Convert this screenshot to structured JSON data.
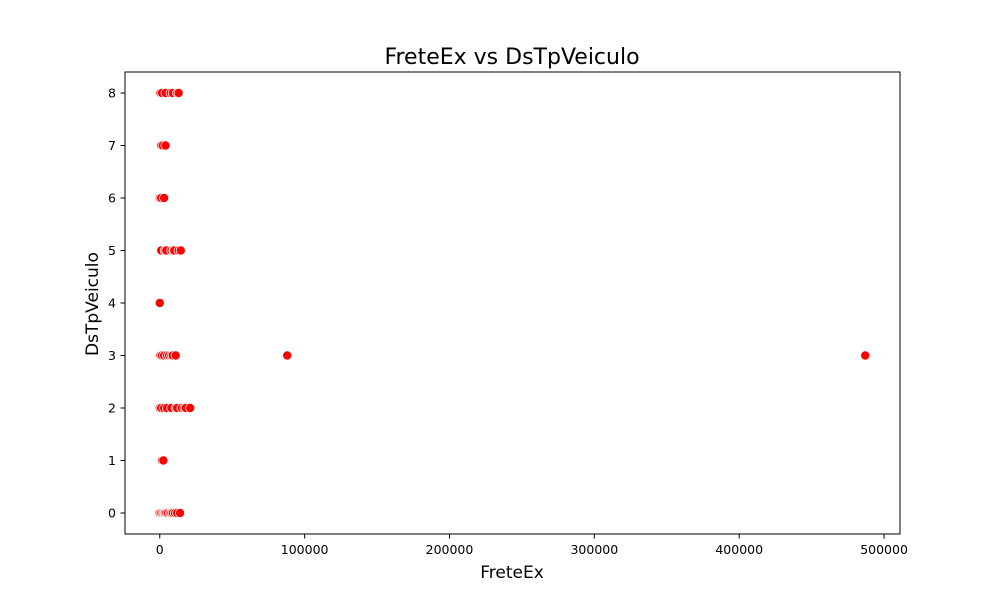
{
  "chart_data": {
    "type": "scatter",
    "title": "FreteEx vs DsTpVeiculo",
    "xlabel": "FreteEx",
    "ylabel": "DsTpVeiculo",
    "xlim": [
      -24000,
      511000
    ],
    "ylim": [
      -0.4,
      8.4
    ],
    "xticks": [
      0,
      100000,
      200000,
      300000,
      400000,
      500000
    ],
    "xtick_labels": [
      "0",
      "100000",
      "200000",
      "300000",
      "400000",
      "500000"
    ],
    "yticks": [
      0,
      1,
      2,
      3,
      4,
      5,
      6,
      7,
      8
    ],
    "ytick_labels": [
      "0",
      "1",
      "2",
      "3",
      "4",
      "5",
      "6",
      "7",
      "8"
    ],
    "grid": false,
    "legend": "none",
    "marker_color": "#ff0000",
    "marker_edge_color": "#ffffff",
    "points": [
      {
        "x": 0,
        "y": 8
      },
      {
        "x": 500,
        "y": 8
      },
      {
        "x": 1500,
        "y": 8
      },
      {
        "x": 4000,
        "y": 8
      },
      {
        "x": 7500,
        "y": 8
      },
      {
        "x": 9000,
        "y": 8
      },
      {
        "x": 12000,
        "y": 8
      },
      {
        "x": 13000,
        "y": 8
      },
      {
        "x": 500,
        "y": 7
      },
      {
        "x": 1000,
        "y": 7
      },
      {
        "x": 2000,
        "y": 7
      },
      {
        "x": 4000,
        "y": 7
      },
      {
        "x": 0,
        "y": 6
      },
      {
        "x": 1000,
        "y": 6
      },
      {
        "x": 3000,
        "y": 6
      },
      {
        "x": 1000,
        "y": 5
      },
      {
        "x": 3500,
        "y": 5
      },
      {
        "x": 4500,
        "y": 5
      },
      {
        "x": 8000,
        "y": 5
      },
      {
        "x": 9500,
        "y": 5
      },
      {
        "x": 10000,
        "y": 5
      },
      {
        "x": 13000,
        "y": 5
      },
      {
        "x": 14500,
        "y": 5
      },
      {
        "x": 0,
        "y": 4
      },
      {
        "x": 0,
        "y": 3
      },
      {
        "x": 500,
        "y": 3
      },
      {
        "x": 1500,
        "y": 3
      },
      {
        "x": 3000,
        "y": 3
      },
      {
        "x": 5000,
        "y": 3
      },
      {
        "x": 6500,
        "y": 3
      },
      {
        "x": 8000,
        "y": 3
      },
      {
        "x": 9000,
        "y": 3
      },
      {
        "x": 11000,
        "y": 3
      },
      {
        "x": 88000,
        "y": 3
      },
      {
        "x": 487000,
        "y": 3
      },
      {
        "x": 0,
        "y": 2
      },
      {
        "x": 1000,
        "y": 2
      },
      {
        "x": 3000,
        "y": 2
      },
      {
        "x": 5000,
        "y": 2
      },
      {
        "x": 8000,
        "y": 2
      },
      {
        "x": 11000,
        "y": 2
      },
      {
        "x": 12000,
        "y": 2
      },
      {
        "x": 15000,
        "y": 2
      },
      {
        "x": 17000,
        "y": 2
      },
      {
        "x": 18000,
        "y": 2
      },
      {
        "x": 21000,
        "y": 2
      },
      {
        "x": 1500,
        "y": 1
      },
      {
        "x": 2500,
        "y": 1
      },
      {
        "x": 0,
        "y": 0
      },
      {
        "x": 1000,
        "y": 0
      },
      {
        "x": 2000,
        "y": 0
      },
      {
        "x": 3000,
        "y": 0
      },
      {
        "x": 3500,
        "y": 0
      },
      {
        "x": 4500,
        "y": 0
      },
      {
        "x": 5500,
        "y": 0
      },
      {
        "x": 7000,
        "y": 0
      },
      {
        "x": 8000,
        "y": 0
      },
      {
        "x": 9000,
        "y": 0
      },
      {
        "x": 10500,
        "y": 0
      },
      {
        "x": 12000,
        "y": 0
      },
      {
        "x": 14000,
        "y": 0
      }
    ]
  }
}
